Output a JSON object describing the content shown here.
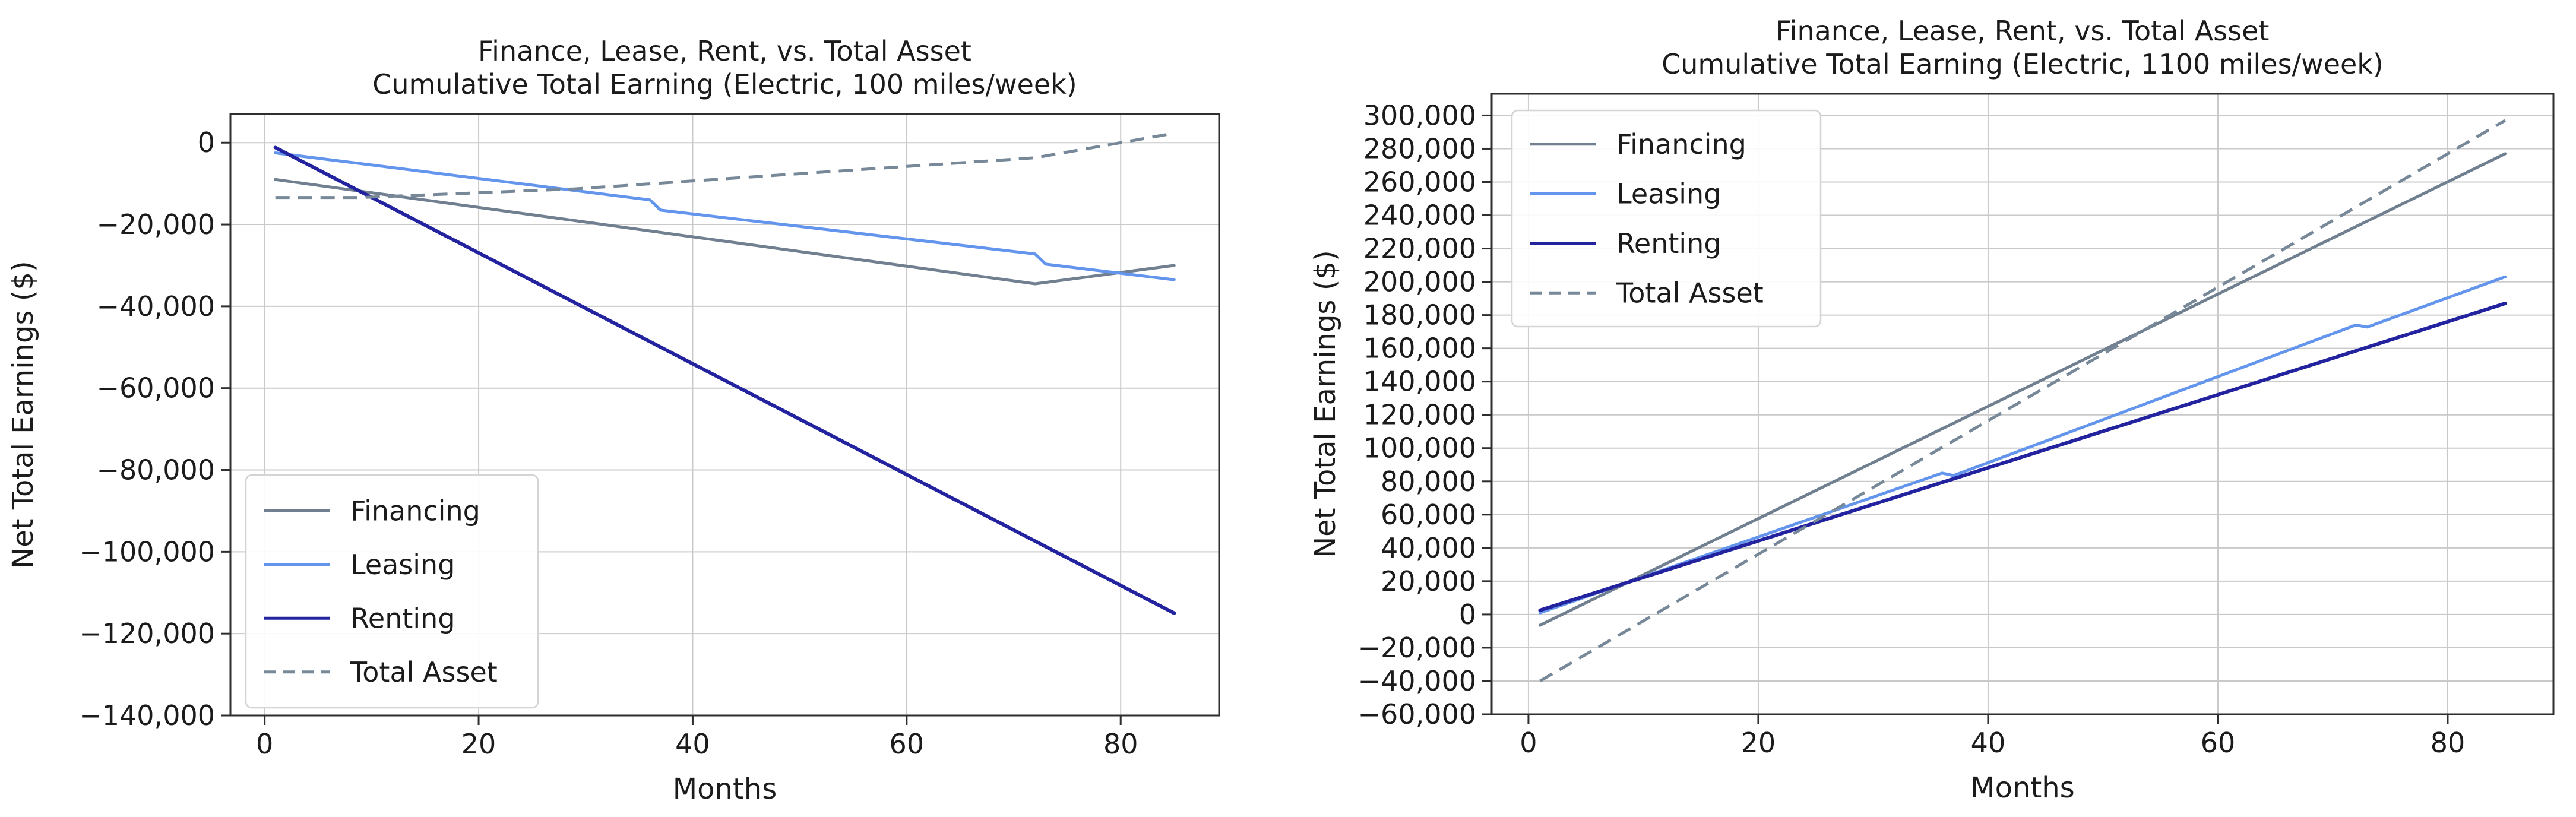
{
  "figure": {
    "background": "#ffffff"
  },
  "colors": {
    "financing": "#708090",
    "leasing": "#6495ED",
    "renting": "#2323A0",
    "total_asset": "#778899",
    "grid": "#c9c9c9",
    "spine": "#2e2e2e",
    "text": "#1b1b1b",
    "legend_border": "#d4d4d4",
    "legend_bg": "#ffffff"
  },
  "chart_data": [
    {
      "id": "electric-100-miles",
      "type": "line",
      "title": "Finance, Lease, Rent, vs. Total Asset",
      "subtitle": "Cumulative Total Earning (Electric, 100 miles/week)",
      "xlabel": "Months",
      "ylabel": "Net Total Earnings ($)",
      "xlim": [
        -3.2,
        89.2
      ],
      "ylim": [
        -140000,
        7000
      ],
      "xticks": [
        0,
        20,
        40,
        60,
        80
      ],
      "yticks": [
        0,
        -20000,
        -40000,
        -60000,
        -80000,
        -100000,
        -120000,
        -140000
      ],
      "grid": true,
      "legend_position": "lower-left",
      "series": [
        {
          "name": "Financing",
          "color_key": "financing",
          "dashed": false,
          "points": [
            [
              1,
              -9000
            ],
            [
              72,
              -34500
            ],
            [
              85,
              -30000
            ]
          ]
        },
        {
          "name": "Leasing",
          "color_key": "leasing",
          "dashed": false,
          "points": [
            [
              1,
              -2500
            ],
            [
              36,
              -14000
            ],
            [
              37,
              -16500
            ],
            [
              72,
              -27200
            ],
            [
              73,
              -29700
            ],
            [
              85,
              -33500
            ]
          ]
        },
        {
          "name": "Renting",
          "color_key": "renting",
          "dashed": false,
          "points": [
            [
              1,
              -1200
            ],
            [
              85,
              -115000
            ]
          ]
        },
        {
          "name": "Total Asset",
          "color_key": "total_asset",
          "dashed": true,
          "points": [
            [
              1,
              -13400
            ],
            [
              9,
              -13400
            ],
            [
              29,
              -11300
            ],
            [
              72,
              -3700
            ],
            [
              85,
              2300
            ]
          ]
        }
      ]
    },
    {
      "id": "electric-1100-miles",
      "type": "line",
      "title": "Finance, Lease, Rent, vs. Total Asset",
      "subtitle": "Cumulative Total Earning (Electric, 1100 miles/week)",
      "xlabel": "Months",
      "ylabel": "Net Total Earnings ($)",
      "xlim": [
        -3.2,
        89.2
      ],
      "ylim": [
        -60000,
        313000
      ],
      "xticks": [
        0,
        20,
        40,
        60,
        80
      ],
      "yticks": [
        300000,
        280000,
        260000,
        240000,
        220000,
        200000,
        180000,
        160000,
        140000,
        120000,
        100000,
        80000,
        60000,
        40000,
        20000,
        0,
        -20000,
        -40000,
        -60000
      ],
      "grid": true,
      "legend_position": "upper-left",
      "series": [
        {
          "name": "Financing",
          "color_key": "financing",
          "dashed": false,
          "points": [
            [
              1,
              -6500
            ],
            [
              85,
              277000
            ]
          ]
        },
        {
          "name": "Leasing",
          "color_key": "leasing",
          "dashed": false,
          "points": [
            [
              1,
              1000
            ],
            [
              36,
              85000
            ],
            [
              37,
              83500
            ],
            [
              72,
              174000
            ],
            [
              73,
              172800
            ],
            [
              85,
              203000
            ]
          ]
        },
        {
          "name": "Renting",
          "color_key": "renting",
          "dashed": false,
          "points": [
            [
              1,
              2500
            ],
            [
              85,
              187000
            ]
          ]
        },
        {
          "name": "Total Asset",
          "color_key": "total_asset",
          "dashed": true,
          "points": [
            [
              1,
              -40000
            ],
            [
              85,
              297000
            ]
          ]
        }
      ]
    }
  ]
}
